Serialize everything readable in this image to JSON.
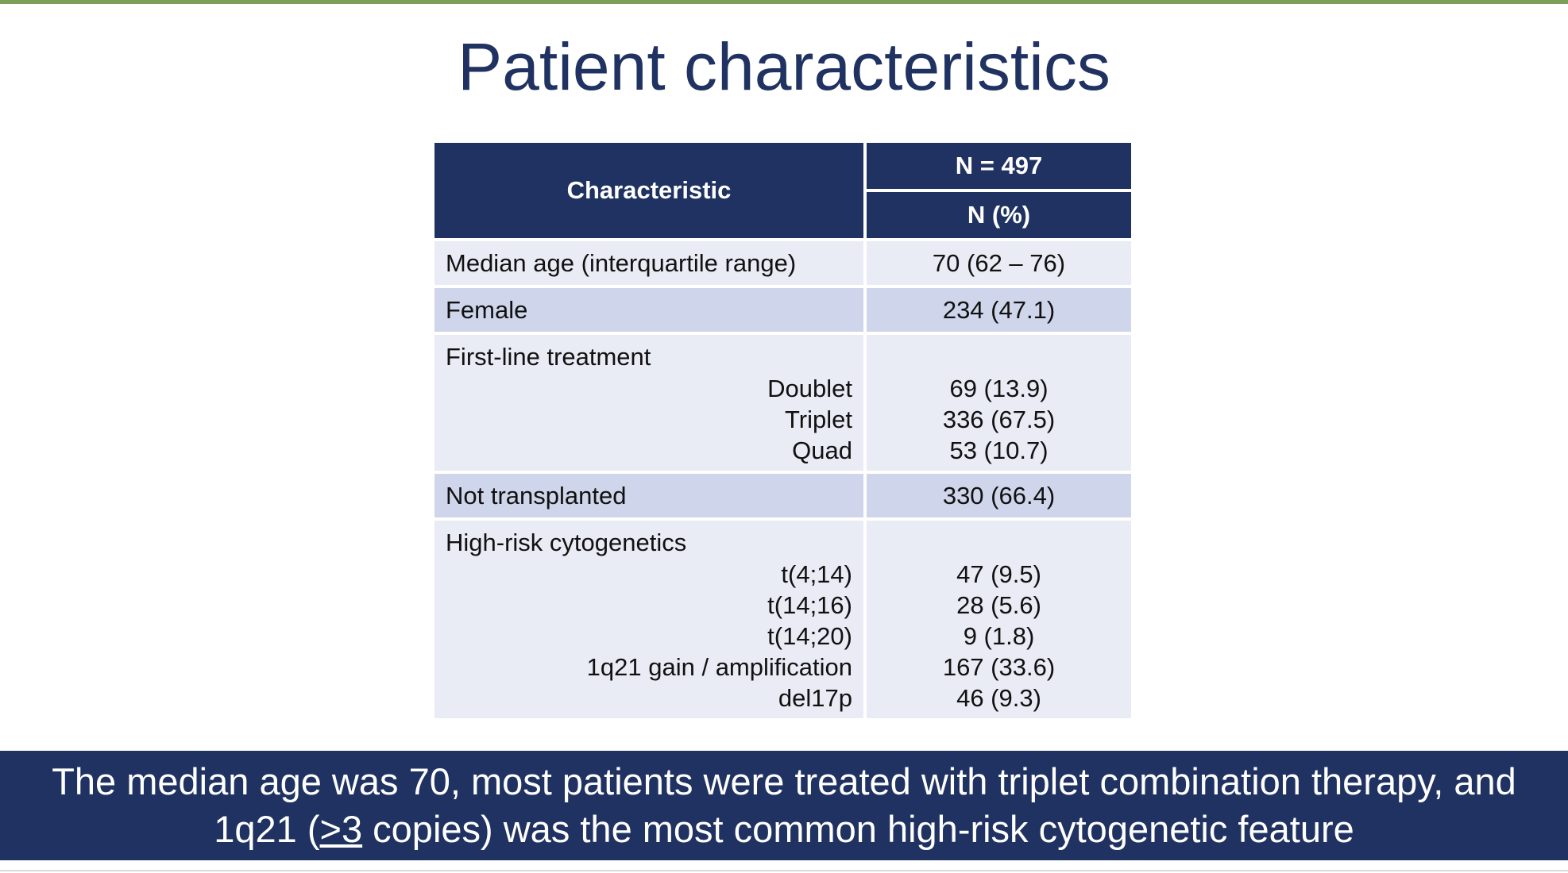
{
  "title": "Patient characteristics",
  "table": {
    "header": {
      "characteristic": "Characteristic",
      "n_total": "N = 497",
      "n_pct": "N (%)"
    },
    "rows": [
      {
        "label": "Median age (interquartile range)",
        "value": "70 (62 – 76)"
      },
      {
        "label": "Female",
        "value": "234 (47.1)"
      },
      {
        "label": "First-line treatment",
        "sub": [
          {
            "label": "Doublet",
            "value": "69 (13.9)"
          },
          {
            "label": "Triplet",
            "value": "336 (67.5)"
          },
          {
            "label": "Quad",
            "value": "53 (10.7)"
          }
        ]
      },
      {
        "label": "Not transplanted",
        "value": "330 (66.4)"
      },
      {
        "label": "High-risk cytogenetics",
        "sub": [
          {
            "label": "t(4;14)",
            "value": "47 (9.5)"
          },
          {
            "label": "t(14;16)",
            "value": "28 (5.6)"
          },
          {
            "label": "t(14;20)",
            "value": "9 (1.8)"
          },
          {
            "label": "1q21 gain / amplification",
            "value": "167 (33.6)"
          },
          {
            "label": "del17p",
            "value": "46 (9.3)"
          }
        ]
      }
    ]
  },
  "summary": {
    "line1": "The median age was 70, most patients were treated with triplet combination therapy, and",
    "line2_pre": "1q21 (",
    "line2_underlined": ">3",
    "line2_post": " copies) was the most common high-risk cytogenetic feature"
  },
  "colors": {
    "navy": "#203261",
    "row_light": "#e9ebf5",
    "row_dark": "#cfd5ea",
    "top_rule": "#7d9e59"
  }
}
